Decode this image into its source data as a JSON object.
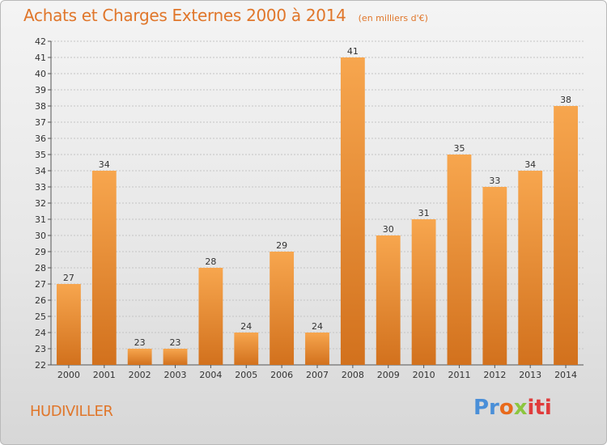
{
  "header": {
    "title": "Achats et Charges Externes 2000 à 2014",
    "unit": "(en milliers d'€)"
  },
  "footer": {
    "commune": "HUDIVILLER",
    "logo": {
      "p": "Pr",
      "o": "o",
      "x": "x",
      "i": "iti"
    }
  },
  "colors": {
    "bar_top": "#f7a64e",
    "bar_bottom": "#d2711d",
    "title": "#e0762a"
  },
  "chart_data": {
    "type": "bar",
    "title": "Achats et Charges Externes 2000 à 2014",
    "subtitle": "(en milliers d'€)",
    "xlabel": "",
    "ylabel": "",
    "categories": [
      "2000",
      "2001",
      "2002",
      "2003",
      "2004",
      "2005",
      "2006",
      "2007",
      "2008",
      "2009",
      "2010",
      "2011",
      "2012",
      "2013",
      "2014"
    ],
    "values": [
      27,
      34,
      23,
      23,
      28,
      24,
      29,
      24,
      41,
      30,
      31,
      35,
      33,
      34,
      38
    ],
    "ylim": [
      22,
      42
    ],
    "yticks": [
      22,
      23,
      24,
      25,
      26,
      27,
      28,
      29,
      30,
      31,
      32,
      33,
      34,
      35,
      36,
      37,
      38,
      39,
      40,
      41,
      42
    ],
    "grid": true,
    "legend": "none"
  }
}
